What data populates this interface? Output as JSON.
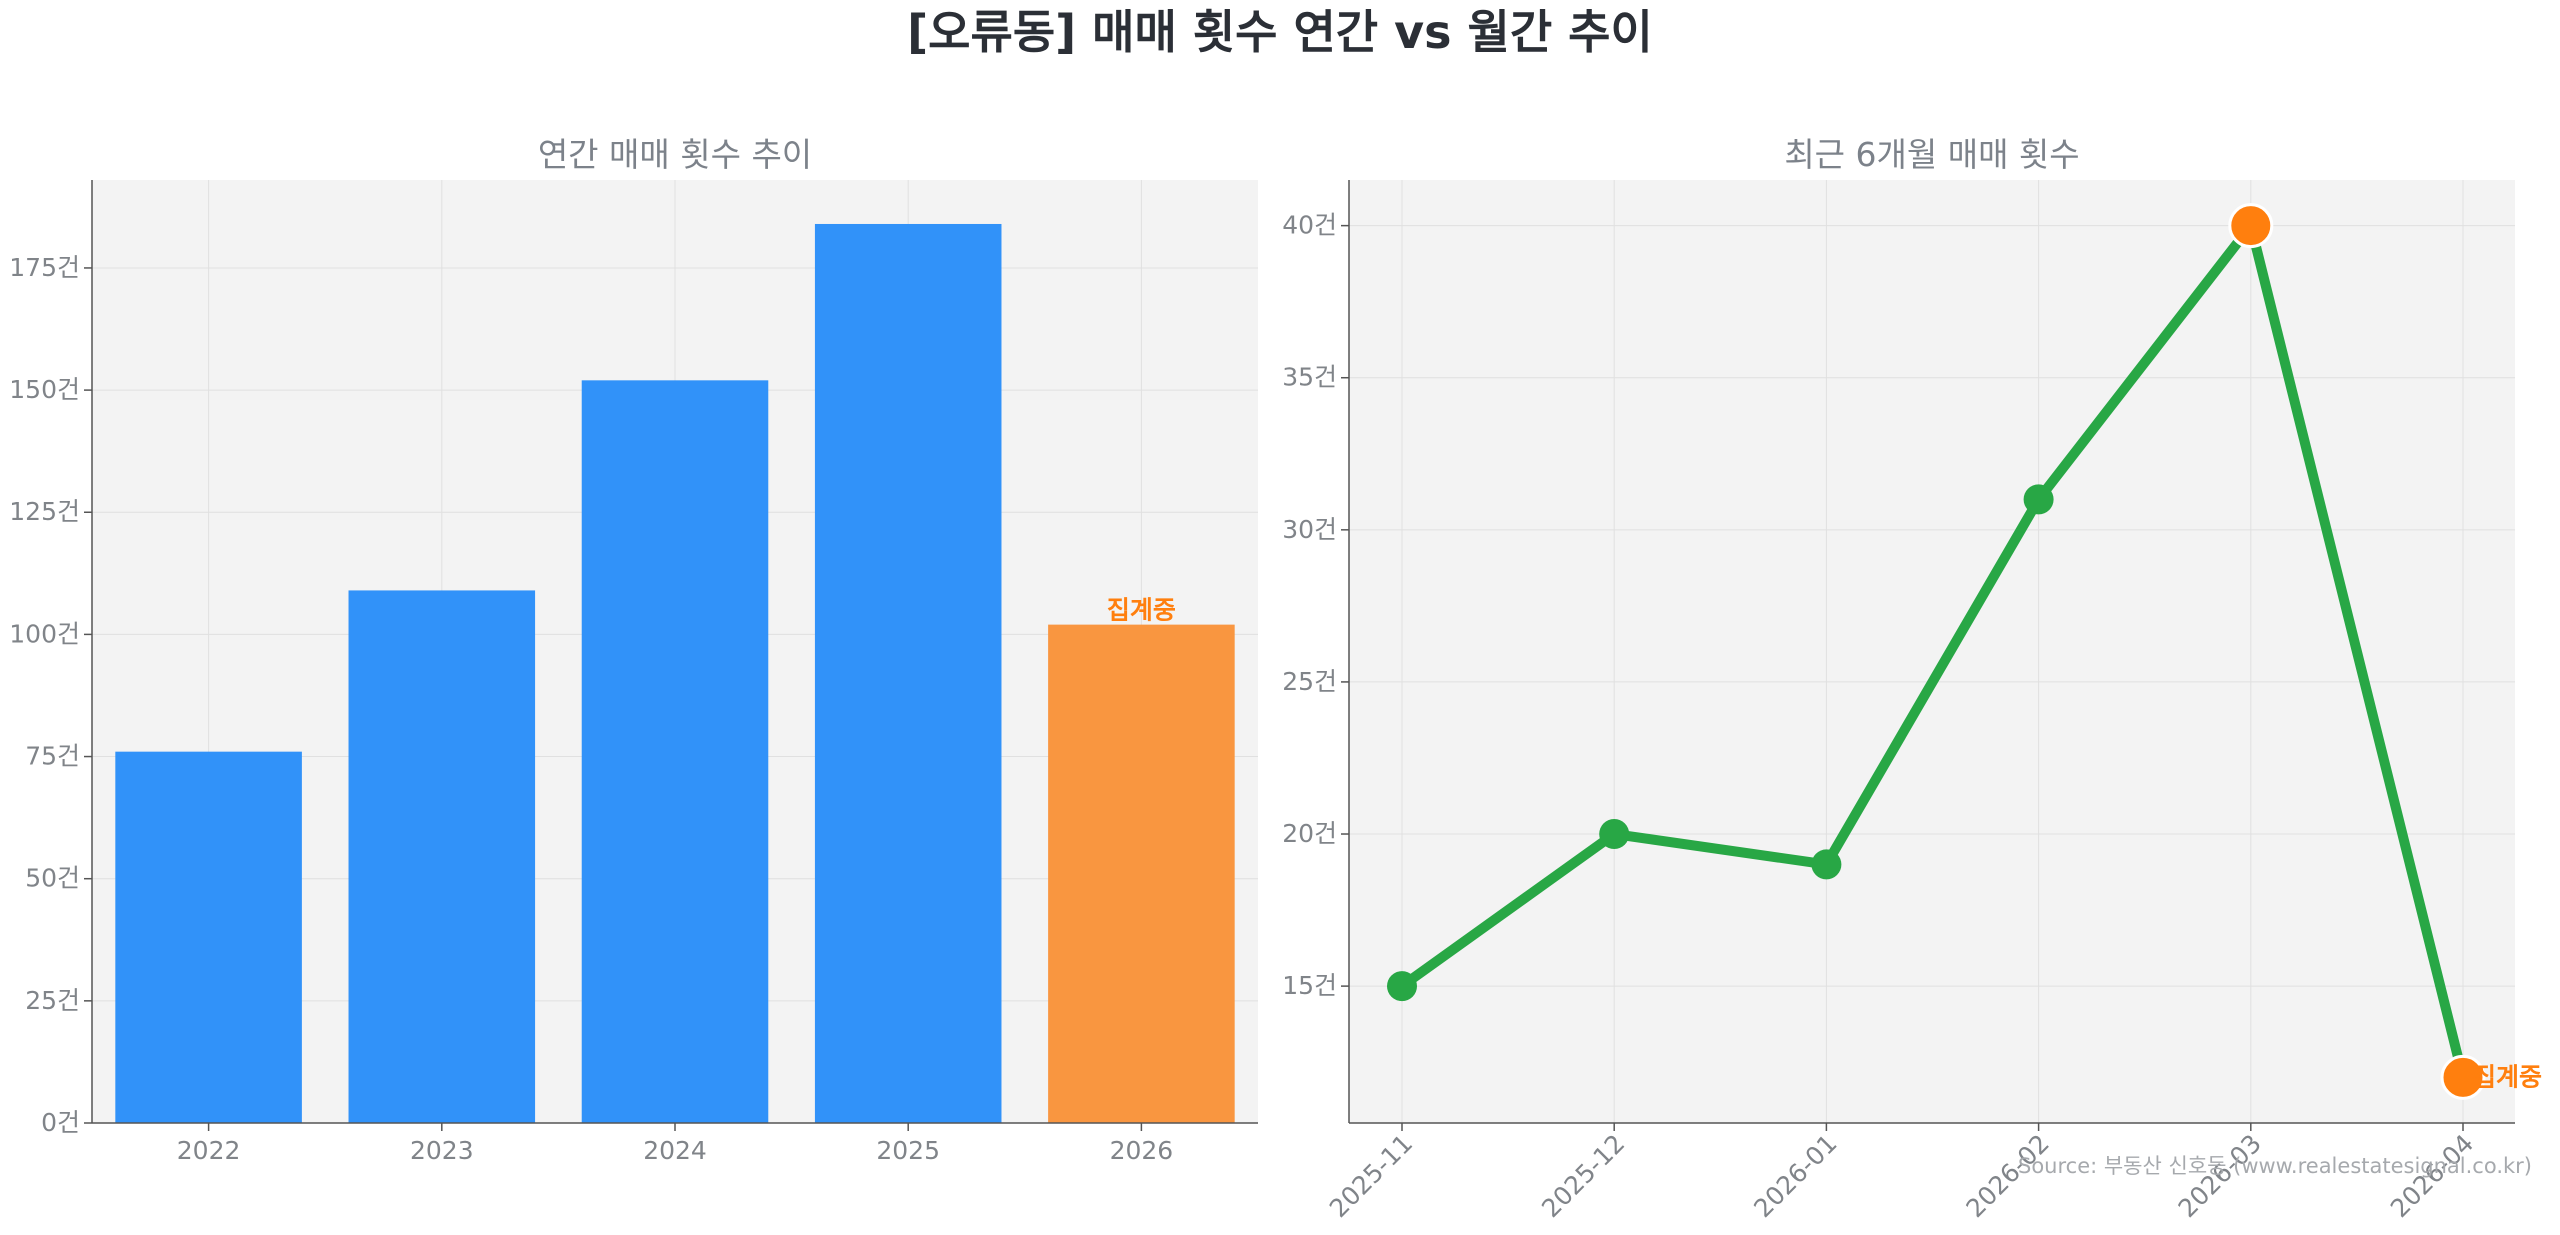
{
  "title": "[오류동] 매매 횟수 연간 vs 월간 추이",
  "source": "Source: 부동산 신호등 (www.realestatesignal.co.kr)",
  "colors": {
    "bar": "#3192f9",
    "bar_pending": "#f99640",
    "line": "#28a745",
    "highlight": "#ff7f0e",
    "panel_bg": "#f3f3f3",
    "grid": "#e0e0e0",
    "tick_text": "#808489",
    "title_text": "#7c828a"
  },
  "chart_data": [
    {
      "type": "bar",
      "title": "연간 매매 횟수 추이",
      "categories": [
        "2022",
        "2023",
        "2024",
        "2025",
        "2026"
      ],
      "values": [
        76,
        109,
        152,
        184,
        102
      ],
      "ylim": [
        0,
        193
      ],
      "yticks": [
        0,
        25,
        50,
        75,
        100,
        125,
        150,
        175
      ],
      "ytick_suffix": "건",
      "pending_index": 4,
      "pending_label": "집계중",
      "grid": true,
      "xlabel": "",
      "ylabel": ""
    },
    {
      "type": "line",
      "title": "최근 6개월 매매 횟수",
      "x": [
        "2025-11",
        "2025-12",
        "2026-01",
        "2026-02",
        "2026-03",
        "2026-04"
      ],
      "values": [
        15,
        20,
        19,
        31,
        40,
        12
      ],
      "ylim": [
        10.5,
        41.5
      ],
      "yticks": [
        15,
        20,
        25,
        30,
        35,
        40
      ],
      "ytick_suffix": "건",
      "highlight_indices": [
        4,
        5
      ],
      "pending_index": 5,
      "pending_label": "집계중",
      "grid": true,
      "xtick_rotation": 45,
      "xlabel": "",
      "ylabel": ""
    }
  ]
}
